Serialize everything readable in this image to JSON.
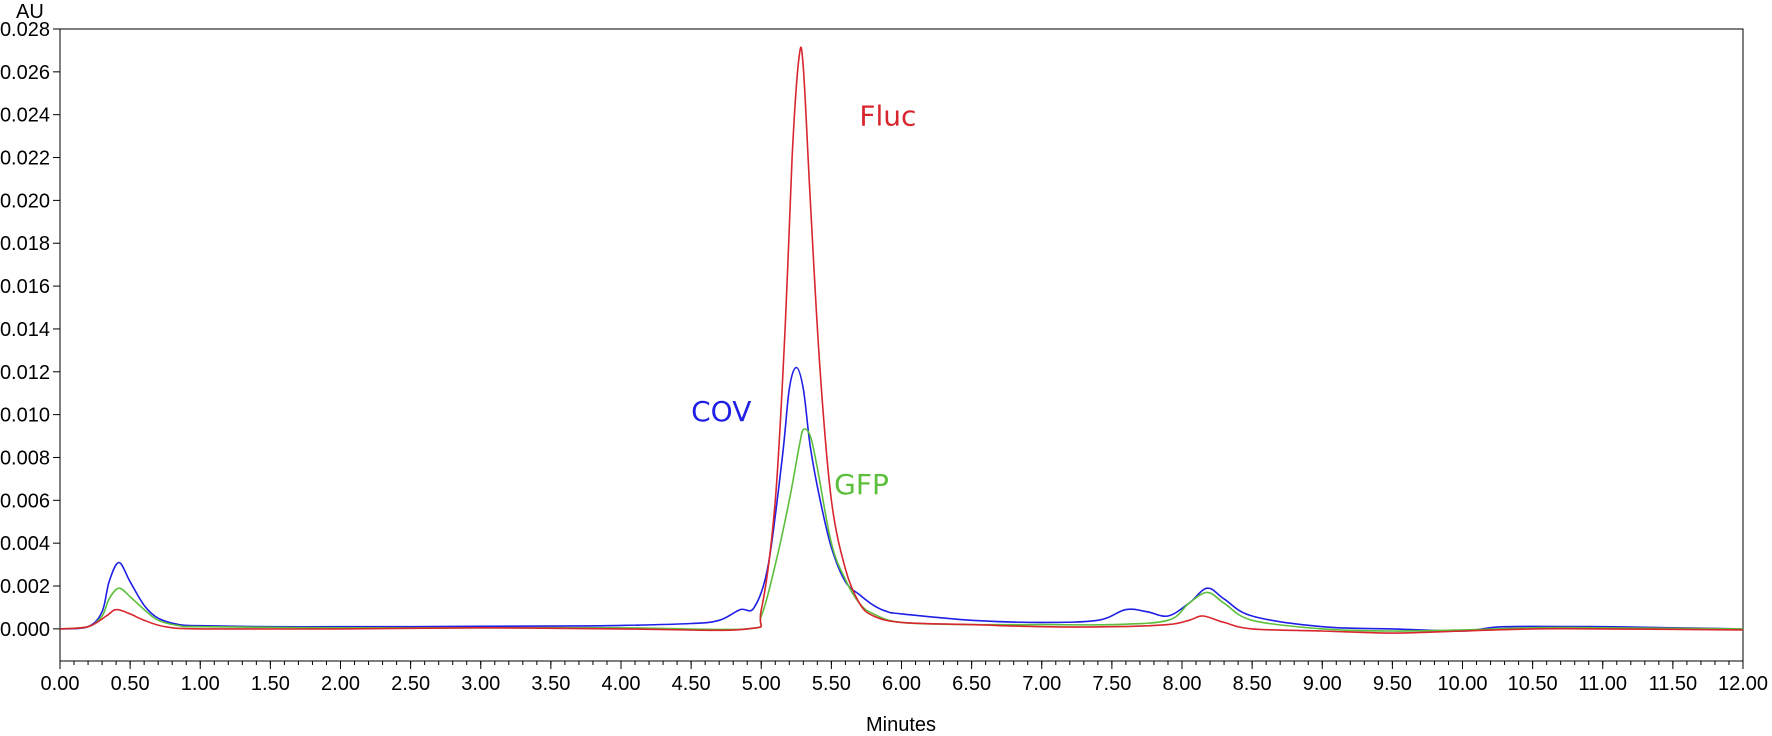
{
  "chart_data": {
    "type": "line",
    "title": "",
    "xlabel": "Minutes",
    "ylabel": "AU",
    "xlim": [
      0,
      12
    ],
    "ylim": [
      -0.0015,
      0.028
    ],
    "x_ticks": [
      "0.00",
      "0.50",
      "1.00",
      "1.50",
      "2.00",
      "2.50",
      "3.00",
      "3.50",
      "4.00",
      "4.50",
      "5.00",
      "5.50",
      "6.00",
      "6.50",
      "7.00",
      "7.50",
      "8.00",
      "8.50",
      "9.00",
      "9.50",
      "10.00",
      "10.50",
      "11.00",
      "11.50",
      "12.00"
    ],
    "y_ticks": [
      "0.000",
      "0.002",
      "0.004",
      "0.006",
      "0.008",
      "0.010",
      "0.012",
      "0.014",
      "0.016",
      "0.018",
      "0.020",
      "0.022",
      "0.024",
      "0.026",
      "0.028"
    ],
    "grid": false,
    "legend": "none",
    "series": [
      {
        "name": "COV",
        "color": "#1f1fe6",
        "points": [
          [
            0,
            0
          ],
          [
            0.2,
            0.0001
          ],
          [
            0.3,
            0.0008
          ],
          [
            0.35,
            0.0022
          ],
          [
            0.42,
            0.0031
          ],
          [
            0.5,
            0.0022
          ],
          [
            0.6,
            0.0011
          ],
          [
            0.7,
            0.0005
          ],
          [
            0.85,
            0.0002
          ],
          [
            1.0,
            0.00015
          ],
          [
            1.5,
            0.0001
          ],
          [
            2.0,
            0.0001
          ],
          [
            2.5,
            0.0001
          ],
          [
            3.0,
            0.00012
          ],
          [
            3.5,
            0.00013
          ],
          [
            4.0,
            0.00016
          ],
          [
            4.5,
            0.00025
          ],
          [
            4.7,
            0.0004
          ],
          [
            4.85,
            0.0009
          ],
          [
            4.95,
            0.001
          ],
          [
            5.05,
            0.003
          ],
          [
            5.15,
            0.008
          ],
          [
            5.2,
            0.0112
          ],
          [
            5.25,
            0.0122
          ],
          [
            5.3,
            0.0112
          ],
          [
            5.35,
            0.0085
          ],
          [
            5.42,
            0.006
          ],
          [
            5.5,
            0.0038
          ],
          [
            5.6,
            0.0022
          ],
          [
            5.7,
            0.0016
          ],
          [
            5.8,
            0.0011
          ],
          [
            5.9,
            0.0008
          ],
          [
            6.0,
            0.0007
          ],
          [
            6.5,
            0.0004
          ],
          [
            7.0,
            0.0003
          ],
          [
            7.4,
            0.0004
          ],
          [
            7.6,
            0.0009
          ],
          [
            7.75,
            0.0008
          ],
          [
            7.9,
            0.0006
          ],
          [
            8.05,
            0.0012
          ],
          [
            8.18,
            0.0019
          ],
          [
            8.3,
            0.0014
          ],
          [
            8.5,
            0.0006
          ],
          [
            9.0,
            0.0001
          ],
          [
            9.5,
            0.0
          ],
          [
            10.0,
            -0.0001
          ],
          [
            10.3,
            0.0001
          ],
          [
            11.0,
            0.0001
          ],
          [
            11.5,
            5e-05
          ],
          [
            12.0,
            0.0
          ]
        ]
      },
      {
        "name": "GFP",
        "color": "#5cbf3c",
        "points": [
          [
            0,
            0
          ],
          [
            0.2,
            0.0001
          ],
          [
            0.3,
            0.0006
          ],
          [
            0.35,
            0.0014
          ],
          [
            0.42,
            0.0019
          ],
          [
            0.5,
            0.0015
          ],
          [
            0.6,
            0.0009
          ],
          [
            0.7,
            0.0004
          ],
          [
            0.85,
            0.00015
          ],
          [
            1.0,
            0.0001
          ],
          [
            2.0,
            5e-05
          ],
          [
            3.0,
            5e-05
          ],
          [
            4.0,
            5e-05
          ],
          [
            4.9,
            0.0
          ],
          [
            5.0,
            0.0006
          ],
          [
            5.1,
            0.003
          ],
          [
            5.2,
            0.006
          ],
          [
            5.27,
            0.0085
          ],
          [
            5.3,
            0.0093
          ],
          [
            5.35,
            0.009
          ],
          [
            5.4,
            0.0075
          ],
          [
            5.5,
            0.004
          ],
          [
            5.6,
            0.0023
          ],
          [
            5.7,
            0.0012
          ],
          [
            5.8,
            0.0007
          ],
          [
            6.0,
            0.0003
          ],
          [
            6.5,
            0.0002
          ],
          [
            7.0,
            0.0002
          ],
          [
            7.5,
            0.0002
          ],
          [
            7.9,
            0.0004
          ],
          [
            8.05,
            0.0012
          ],
          [
            8.18,
            0.0017
          ],
          [
            8.3,
            0.0012
          ],
          [
            8.5,
            0.0004
          ],
          [
            9.0,
            0.0
          ],
          [
            9.5,
            -0.0001
          ],
          [
            10.0,
            -5e-05
          ],
          [
            10.5,
            5e-05
          ],
          [
            11.0,
            5e-05
          ],
          [
            12.0,
            0.0
          ]
        ]
      },
      {
        "name": "Fluc",
        "color": "#d8262e",
        "points": [
          [
            0,
            0
          ],
          [
            0.2,
            0.0001
          ],
          [
            0.33,
            0.0006
          ],
          [
            0.4,
            0.0009
          ],
          [
            0.5,
            0.0007
          ],
          [
            0.6,
            0.0004
          ],
          [
            0.75,
            0.0001
          ],
          [
            1.0,
            0.0
          ],
          [
            2.0,
            0.0
          ],
          [
            3.0,
            5e-05
          ],
          [
            4.0,
            0.0
          ],
          [
            4.9,
            0.0
          ],
          [
            5.0,
            0.0009
          ],
          [
            5.1,
            0.006
          ],
          [
            5.17,
            0.014
          ],
          [
            5.22,
            0.022
          ],
          [
            5.27,
            0.0267
          ],
          [
            5.3,
            0.0262
          ],
          [
            5.35,
            0.02
          ],
          [
            5.42,
            0.012
          ],
          [
            5.5,
            0.006
          ],
          [
            5.6,
            0.0028
          ],
          [
            5.7,
            0.0012
          ],
          [
            5.8,
            0.0006
          ],
          [
            6.0,
            0.0003
          ],
          [
            6.5,
            0.0002
          ],
          [
            7.0,
            0.0001
          ],
          [
            7.5,
            0.0001
          ],
          [
            7.9,
            0.0002
          ],
          [
            8.05,
            0.0004
          ],
          [
            8.15,
            0.0006
          ],
          [
            8.3,
            0.0003
          ],
          [
            8.5,
            0.0
          ],
          [
            9.0,
            -0.0001
          ],
          [
            9.5,
            -0.0002
          ],
          [
            10.0,
            -0.0001
          ],
          [
            10.5,
            0.0
          ],
          [
            11.0,
            0.0
          ],
          [
            12.0,
            -5e-05
          ]
        ]
      }
    ],
    "annotations": [
      {
        "text": "Fluc",
        "x": 5.7,
        "y": 0.0235,
        "color": "#d8262e"
      },
      {
        "text": "COV",
        "x": 4.5,
        "y": 0.0097,
        "color": "#1f1fe6"
      },
      {
        "text": "GFP",
        "x": 5.52,
        "y": 0.0063,
        "color": "#5cbf3c"
      }
    ]
  }
}
